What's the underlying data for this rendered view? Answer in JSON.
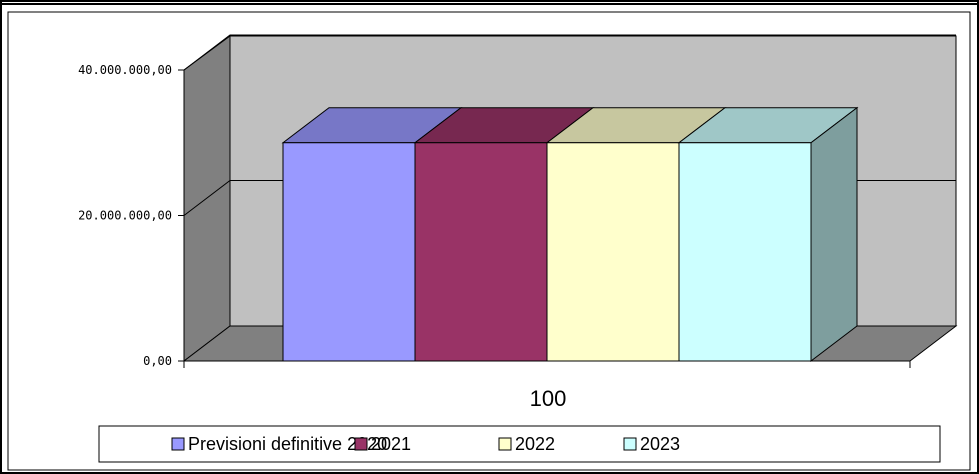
{
  "chart_data": {
    "type": "bar",
    "title": "",
    "xlabel": "",
    "ylabel": "",
    "categories": [
      "100"
    ],
    "series": [
      {
        "name": "Previsioni definitive 2020",
        "values": [
          30000000
        ],
        "color": "#9999ff"
      },
      {
        "name": "2021",
        "values": [
          30000000
        ],
        "color": "#993366"
      },
      {
        "name": "2022",
        "values": [
          30000000
        ],
        "color": "#ffffcc"
      },
      {
        "name": "2023",
        "values": [
          30000000
        ],
        "color": "#ccffff"
      }
    ],
    "ylim": [
      0,
      40000000
    ],
    "y_ticks": [
      "0,00",
      "20.000.000,00",
      "40.000.000,00"
    ],
    "grid": true,
    "three_d": true,
    "legend_position": "bottom"
  }
}
